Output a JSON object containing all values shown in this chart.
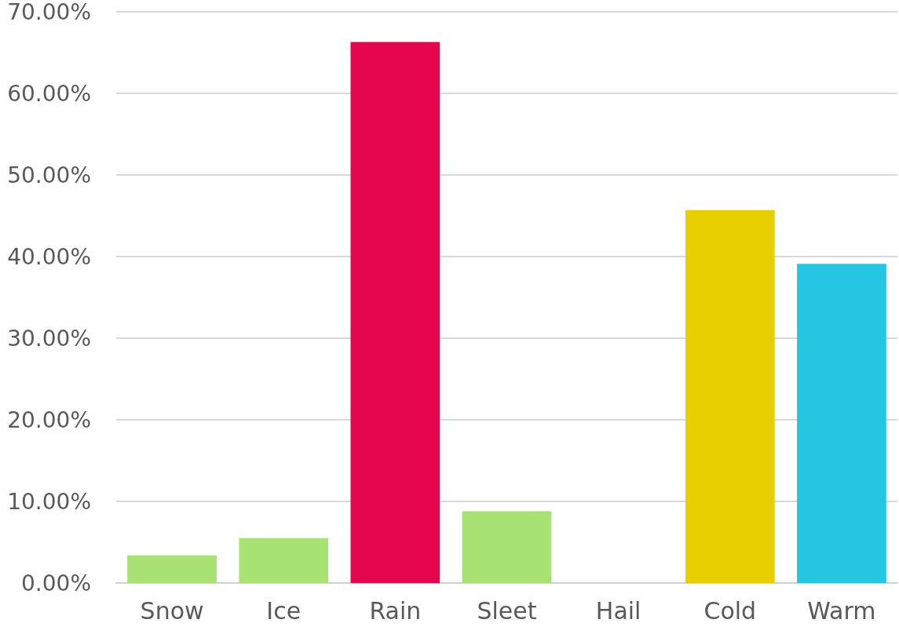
{
  "chart_data": {
    "type": "bar",
    "categories": [
      "Snow",
      "Ice",
      "Rain",
      "Sleet",
      "Hail",
      "Cold",
      "Warm"
    ],
    "values": [
      3.4,
      5.5,
      66.3,
      8.8,
      0,
      45.7,
      39.1
    ],
    "colors": [
      "#a8e272",
      "#a8e272",
      "#e60650",
      "#a8e272",
      "#a8e272",
      "#e8d000",
      "#25c6e2"
    ],
    "ylim": [
      0,
      70
    ],
    "yticks": [
      {
        "value": 0,
        "label": "0.00%"
      },
      {
        "value": 10,
        "label": "10.00%"
      },
      {
        "value": 20,
        "label": "20.00%"
      },
      {
        "value": 30,
        "label": "30.00%"
      },
      {
        "value": 40,
        "label": "40.00%"
      },
      {
        "value": 50,
        "label": "50.00%"
      },
      {
        "value": 60,
        "label": "60.00%"
      },
      {
        "value": 70,
        "label": "70.00%"
      }
    ],
    "grid": "y"
  }
}
